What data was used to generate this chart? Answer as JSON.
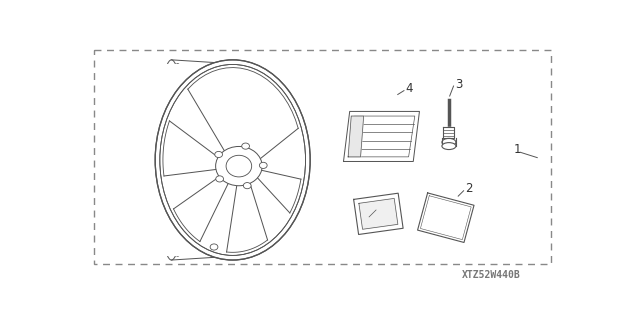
{
  "background_color": "#ffffff",
  "border_color": "#777777",
  "figure_width": 6.4,
  "figure_height": 3.19,
  "dpi": 100,
  "watermark": "XTZ52W440B",
  "line_color": "#555555",
  "text_color": "#333333",
  "label_fontsize": 8.5
}
